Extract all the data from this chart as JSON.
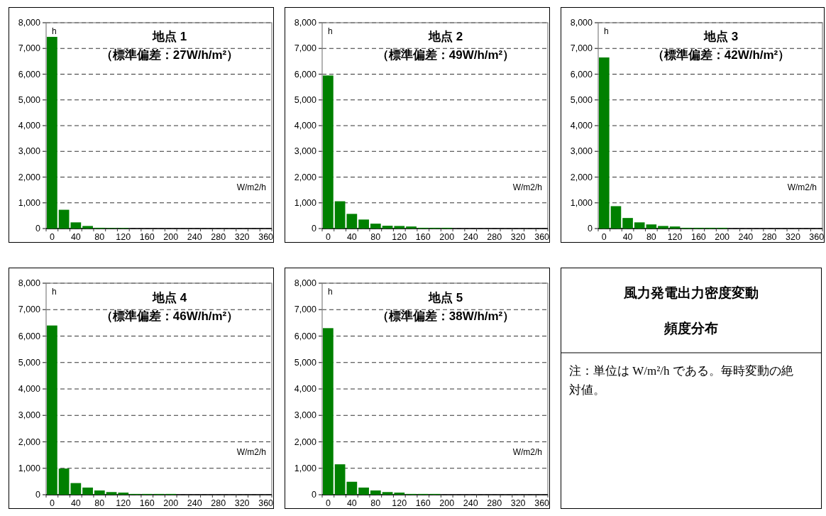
{
  "chart_data": [
    {
      "type": "bar",
      "title": "地点 1",
      "subtitle": "（標準偏差：27W/h/m²）",
      "ylabel": "h",
      "xlabel": "W/m2/h",
      "color": "#008000",
      "grid": "y",
      "categories": [
        "0",
        null,
        "40",
        null,
        "80",
        null,
        "120",
        null,
        "160",
        null,
        "200",
        null,
        "240",
        null,
        "280",
        null,
        "320",
        null,
        "360"
      ],
      "values": [
        7450,
        730,
        240,
        100,
        30,
        20,
        20,
        0,
        0,
        0,
        0,
        0,
        0,
        0,
        0,
        0,
        0,
        0,
        0
      ],
      "ylim": [
        0,
        8000
      ],
      "yticks": [
        {
          "value": 0,
          "label": "0"
        },
        {
          "value": 1000,
          "label": "1,000"
        },
        {
          "value": 2000,
          "label": "2,000"
        },
        {
          "value": 3000,
          "label": "3,000"
        },
        {
          "value": 4000,
          "label": "4,000"
        },
        {
          "value": 5000,
          "label": "5,000"
        },
        {
          "value": 6000,
          "label": "6,000"
        },
        {
          "value": 7000,
          "label": "7,000"
        },
        {
          "value": 8000,
          "label": "8,000"
        }
      ]
    },
    {
      "type": "bar",
      "title": "地点 2",
      "subtitle": "（標準偏差：49W/h/m²）",
      "ylabel": "h",
      "xlabel": "W/m2/h",
      "color": "#008000",
      "grid": "y",
      "categories": [
        "0",
        null,
        "40",
        null,
        "80",
        null,
        "120",
        null,
        "160",
        null,
        "200",
        null,
        "240",
        null,
        "280",
        null,
        "320",
        null,
        "360"
      ],
      "values": [
        5950,
        1060,
        570,
        350,
        190,
        110,
        100,
        80,
        30,
        30,
        30,
        0,
        0,
        0,
        0,
        0,
        0,
        0,
        0
      ],
      "ylim": [
        0,
        8000
      ],
      "yticks": [
        {
          "value": 0,
          "label": "0"
        },
        {
          "value": 1000,
          "label": "1,000"
        },
        {
          "value": 2000,
          "label": "2,000"
        },
        {
          "value": 3000,
          "label": "3,000"
        },
        {
          "value": 4000,
          "label": "4,000"
        },
        {
          "value": 5000,
          "label": "5,000"
        },
        {
          "value": 6000,
          "label": "6,000"
        },
        {
          "value": 7000,
          "label": "7,000"
        },
        {
          "value": 8000,
          "label": "8,000"
        }
      ]
    },
    {
      "type": "bar",
      "title": "地点 3",
      "subtitle": "（標準偏差：42W/h/m²）",
      "ylabel": "h",
      "xlabel": "W/m2/h",
      "color": "#008000",
      "grid": "y",
      "categories": [
        "0",
        null,
        "40",
        null,
        "80",
        null,
        "120",
        null,
        "160",
        null,
        "200",
        null,
        "240",
        null,
        "280",
        null,
        "320",
        null,
        "360"
      ],
      "values": [
        6650,
        870,
        410,
        240,
        160,
        100,
        80,
        30,
        30,
        30,
        30,
        0,
        0,
        0,
        0,
        0,
        0,
        0,
        0
      ],
      "ylim": [
        0,
        8000
      ],
      "yticks": [
        {
          "value": 0,
          "label": "0"
        },
        {
          "value": 1000,
          "label": "1,000"
        },
        {
          "value": 2000,
          "label": "2,000"
        },
        {
          "value": 3000,
          "label": "3,000"
        },
        {
          "value": 4000,
          "label": "4,000"
        },
        {
          "value": 5000,
          "label": "5,000"
        },
        {
          "value": 6000,
          "label": "6,000"
        },
        {
          "value": 7000,
          "label": "7,000"
        },
        {
          "value": 8000,
          "label": "8,000"
        }
      ]
    },
    {
      "type": "bar",
      "title": "地点 4",
      "subtitle": "（標準偏差：46W/h/m²）",
      "ylabel": "h",
      "xlabel": "W/m2/h",
      "color": "#008000",
      "grid": "y",
      "categories": [
        "0",
        null,
        "40",
        null,
        "80",
        null,
        "120",
        null,
        "160",
        null,
        "200",
        null,
        "240",
        null,
        "280",
        null,
        "320",
        null,
        "360"
      ],
      "values": [
        6400,
        990,
        440,
        270,
        160,
        100,
        80,
        30,
        30,
        30,
        30,
        0,
        0,
        0,
        0,
        0,
        0,
        0,
        0
      ],
      "ylim": [
        0,
        8000
      ],
      "yticks": [
        {
          "value": 0,
          "label": "0"
        },
        {
          "value": 1000,
          "label": "1,000"
        },
        {
          "value": 2000,
          "label": "2,000"
        },
        {
          "value": 3000,
          "label": "3,000"
        },
        {
          "value": 4000,
          "label": "4,000"
        },
        {
          "value": 5000,
          "label": "5,000"
        },
        {
          "value": 6000,
          "label": "6,000"
        },
        {
          "value": 7000,
          "label": "7,000"
        },
        {
          "value": 8000,
          "label": "8,000"
        }
      ]
    },
    {
      "type": "bar",
      "title": "地点 5",
      "subtitle": "（標準偏差：38W/h/m²）",
      "ylabel": "h",
      "xlabel": "W/m2/h",
      "color": "#008000",
      "grid": "y",
      "categories": [
        "0",
        null,
        "40",
        null,
        "80",
        null,
        "120",
        null,
        "160",
        null,
        "200",
        null,
        "240",
        null,
        "280",
        null,
        "320",
        null,
        "360"
      ],
      "values": [
        6300,
        1150,
        490,
        270,
        160,
        100,
        80,
        30,
        30,
        30,
        0,
        0,
        0,
        0,
        0,
        0,
        0,
        0,
        0
      ],
      "ylim": [
        0,
        8000
      ],
      "yticks": [
        {
          "value": 0,
          "label": "0"
        },
        {
          "value": 1000,
          "label": "1,000"
        },
        {
          "value": 2000,
          "label": "2,000"
        },
        {
          "value": 3000,
          "label": "3,000"
        },
        {
          "value": 4000,
          "label": "4,000"
        },
        {
          "value": 5000,
          "label": "5,000"
        },
        {
          "value": 6000,
          "label": "6,000"
        },
        {
          "value": 7000,
          "label": "7,000"
        },
        {
          "value": 8000,
          "label": "8,000"
        }
      ]
    },
    {
      "type": "other",
      "title": "風力発電出力密度変動",
      "subtitle": "頻度分布",
      "annotations": [
        "注：単位は W/m²/h である。毎時変動の絶対値。"
      ]
    }
  ]
}
